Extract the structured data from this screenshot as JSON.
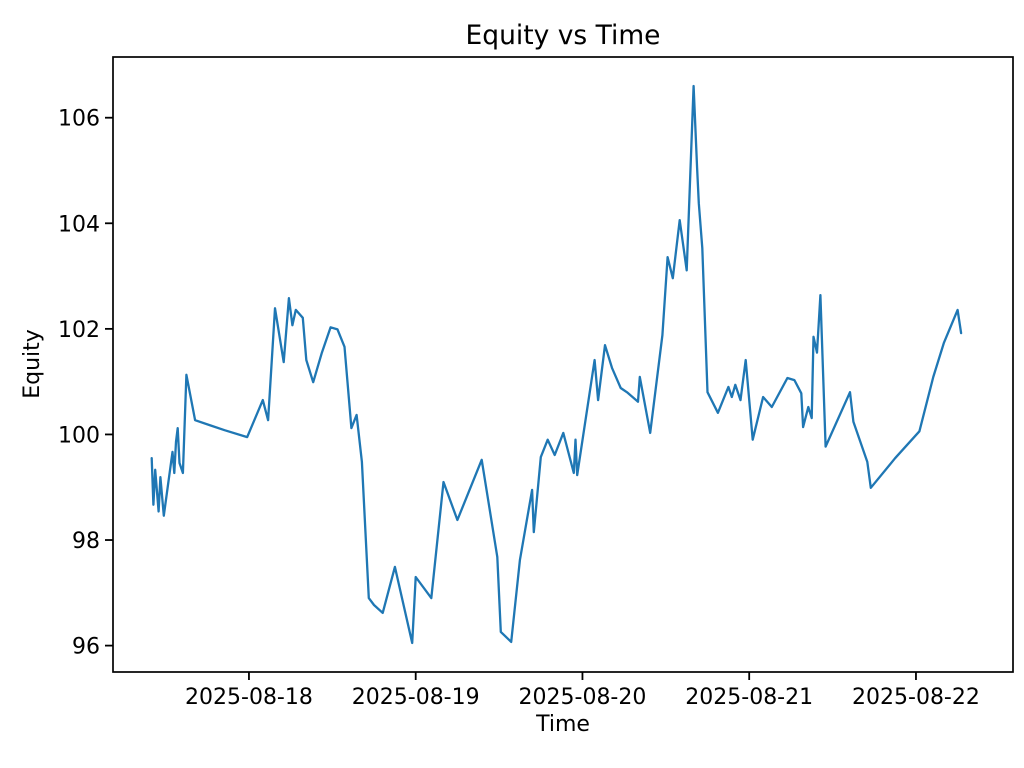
{
  "chart_data": {
    "type": "line",
    "title": "Equity vs Time",
    "xlabel": "Time",
    "ylabel": "Equity",
    "line_color": "#1f77b4",
    "axis_color": "#000000",
    "background": "#ffffff",
    "grid": false,
    "legend": "none",
    "x_tick_labels": [
      "2025-08-18",
      "2025-08-19",
      "2025-08-20",
      "2025-08-21",
      "2025-08-22"
    ],
    "y_ticks": [
      96,
      98,
      100,
      102,
      104,
      106
    ],
    "xlim": [
      "2025-08-17 04:26",
      "2025-08-22 13:58"
    ],
    "ylim": [
      95.5,
      107.15
    ],
    "points": [
      [
        "2025-08-17 10:00",
        99.55
      ],
      [
        "2025-08-17 10:15",
        98.67
      ],
      [
        "2025-08-17 10:30",
        99.33
      ],
      [
        "2025-08-17 11:00",
        98.54
      ],
      [
        "2025-08-17 11:15",
        99.19
      ],
      [
        "2025-08-17 11:45",
        98.46
      ],
      [
        "2025-08-17 13:00",
        99.67
      ],
      [
        "2025-08-17 13:15",
        99.27
      ],
      [
        "2025-08-17 13:30",
        99.86
      ],
      [
        "2025-08-17 13:45",
        100.12
      ],
      [
        "2025-08-17 14:00",
        99.46
      ],
      [
        "2025-08-17 14:30",
        99.27
      ],
      [
        "2025-08-17 15:00",
        101.13
      ],
      [
        "2025-08-17 16:15",
        100.27
      ],
      [
        "2025-08-17 18:30",
        100.17
      ],
      [
        "2025-08-17 20:30",
        100.08
      ],
      [
        "2025-08-17 23:45",
        99.95
      ],
      [
        "2025-08-18 02:00",
        100.65
      ],
      [
        "2025-08-18 02:45",
        100.27
      ],
      [
        "2025-08-18 03:45",
        102.39
      ],
      [
        "2025-08-18 05:00",
        101.37
      ],
      [
        "2025-08-18 05:45",
        102.58
      ],
      [
        "2025-08-18 06:15",
        102.07
      ],
      [
        "2025-08-18 06:45",
        102.36
      ],
      [
        "2025-08-18 07:45",
        102.21
      ],
      [
        "2025-08-18 08:15",
        101.41
      ],
      [
        "2025-08-18 09:15",
        100.99
      ],
      [
        "2025-08-18 10:30",
        101.55
      ],
      [
        "2025-08-18 11:45",
        102.03
      ],
      [
        "2025-08-18 12:45",
        101.99
      ],
      [
        "2025-08-18 13:45",
        101.66
      ],
      [
        "2025-08-18 14:45",
        100.12
      ],
      [
        "2025-08-18 15:30",
        100.37
      ],
      [
        "2025-08-18 16:15",
        99.48
      ],
      [
        "2025-08-18 17:15",
        96.9
      ],
      [
        "2025-08-18 18:00",
        96.77
      ],
      [
        "2025-08-18 19:15",
        96.62
      ],
      [
        "2025-08-18 21:00",
        97.49
      ],
      [
        "2025-08-18 23:30",
        96.05
      ],
      [
        "2025-08-19 00:00",
        97.3
      ],
      [
        "2025-08-19 02:15",
        96.9
      ],
      [
        "2025-08-19 04:00",
        99.1
      ],
      [
        "2025-08-19 06:00",
        98.38
      ],
      [
        "2025-08-19 09:30",
        99.52
      ],
      [
        "2025-08-19 11:45",
        97.68
      ],
      [
        "2025-08-19 12:15",
        96.26
      ],
      [
        "2025-08-19 13:45",
        96.07
      ],
      [
        "2025-08-19 15:00",
        97.62
      ],
      [
        "2025-08-19 16:45",
        98.95
      ],
      [
        "2025-08-19 17:00",
        98.15
      ],
      [
        "2025-08-19 18:00",
        99.57
      ],
      [
        "2025-08-19 19:00",
        99.9
      ],
      [
        "2025-08-19 20:00",
        99.61
      ],
      [
        "2025-08-19 21:15",
        100.03
      ],
      [
        "2025-08-19 22:45",
        99.27
      ],
      [
        "2025-08-19 23:00",
        99.9
      ],
      [
        "2025-08-19 23:15",
        99.23
      ],
      [
        "2025-08-20 01:45",
        101.41
      ],
      [
        "2025-08-20 02:15",
        100.65
      ],
      [
        "2025-08-20 03:15",
        101.69
      ],
      [
        "2025-08-20 04:15",
        101.26
      ],
      [
        "2025-08-20 05:30",
        100.88
      ],
      [
        "2025-08-20 06:30",
        100.79
      ],
      [
        "2025-08-20 08:00",
        100.62
      ],
      [
        "2025-08-20 08:15",
        101.09
      ],
      [
        "2025-08-20 09:45",
        100.03
      ],
      [
        "2025-08-20 11:30",
        101.88
      ],
      [
        "2025-08-20 12:15",
        103.36
      ],
      [
        "2025-08-20 13:00",
        102.96
      ],
      [
        "2025-08-20 14:00",
        104.06
      ],
      [
        "2025-08-20 15:00",
        103.11
      ],
      [
        "2025-08-20 16:00",
        106.6
      ],
      [
        "2025-08-20 16:30",
        105.05
      ],
      [
        "2025-08-20 16:45",
        104.38
      ],
      [
        "2025-08-20 17:15",
        103.53
      ],
      [
        "2025-08-20 18:00",
        100.8
      ],
      [
        "2025-08-20 19:30",
        100.41
      ],
      [
        "2025-08-20 21:00",
        100.9
      ],
      [
        "2025-08-20 21:30",
        100.71
      ],
      [
        "2025-08-20 22:00",
        100.94
      ],
      [
        "2025-08-20 22:45",
        100.65
      ],
      [
        "2025-08-20 23:30",
        101.41
      ],
      [
        "2025-08-21 00:30",
        99.9
      ],
      [
        "2025-08-21 02:00",
        100.71
      ],
      [
        "2025-08-21 03:15",
        100.52
      ],
      [
        "2025-08-21 05:30",
        101.07
      ],
      [
        "2025-08-21 06:30",
        101.03
      ],
      [
        "2025-08-21 07:30",
        100.78
      ],
      [
        "2025-08-21 07:45",
        100.14
      ],
      [
        "2025-08-21 08:30",
        100.52
      ],
      [
        "2025-08-21 09:00",
        100.31
      ],
      [
        "2025-08-21 09:15",
        101.85
      ],
      [
        "2025-08-21 09:45",
        101.55
      ],
      [
        "2025-08-21 10:15",
        102.64
      ],
      [
        "2025-08-21 11:00",
        99.77
      ],
      [
        "2025-08-21 14:30",
        100.8
      ],
      [
        "2025-08-21 15:00",
        100.24
      ],
      [
        "2025-08-21 17:00",
        99.48
      ],
      [
        "2025-08-21 17:30",
        98.99
      ],
      [
        "2025-08-21 21:00",
        99.55
      ],
      [
        "2025-08-22 00:30",
        100.06
      ],
      [
        "2025-08-22 02:30",
        101.09
      ],
      [
        "2025-08-22 04:00",
        101.73
      ],
      [
        "2025-08-22 06:00",
        102.36
      ],
      [
        "2025-08-22 06:30",
        101.92
      ]
    ]
  }
}
